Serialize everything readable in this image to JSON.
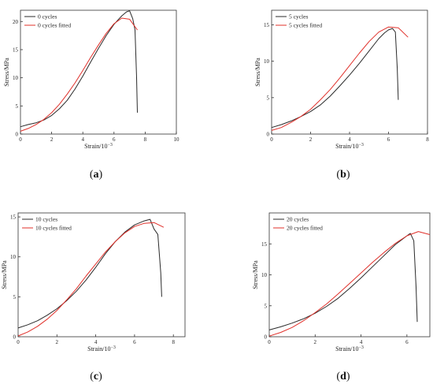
{
  "colors": {
    "measured": "#2a2a2a",
    "fitted": "#e0302a",
    "axis": "#333333"
  },
  "captions": [
    "a",
    "b",
    "c",
    "d"
  ],
  "chart_data": [
    {
      "type": "line",
      "xlabel": "Strain/10",
      "xlabel_exp": "−3",
      "ylabel": "Stress/MPa",
      "xlim": [
        0,
        10
      ],
      "ylim": [
        0,
        22
      ],
      "xticks": [
        0,
        2,
        4,
        6,
        8,
        10
      ],
      "yticks": [
        0,
        5,
        10,
        15,
        20
      ],
      "legend": "top-left",
      "series": [
        {
          "name": "0 cycles",
          "color": "#2a2a2a",
          "x": [
            0,
            0.5,
            1,
            1.5,
            2,
            2.5,
            3,
            3.5,
            4,
            4.5,
            5,
            5.5,
            6,
            6.5,
            6.8,
            7.0,
            7.2,
            7.35,
            7.45,
            7.5
          ],
          "y": [
            1.3,
            1.7,
            2.0,
            2.5,
            3.3,
            4.5,
            6.0,
            8.0,
            10.3,
            12.8,
            15.2,
            17.5,
            19.5,
            21.0,
            21.7,
            21.9,
            20.5,
            18.5,
            10.0,
            3.8
          ]
        },
        {
          "name": "0 cycles fitted",
          "color": "#e0302a",
          "x": [
            0,
            0.5,
            1,
            1.5,
            2,
            2.5,
            3,
            3.5,
            4,
            4.5,
            5,
            5.5,
            6,
            6.5,
            7,
            7.5
          ],
          "y": [
            0.5,
            1.0,
            1.7,
            2.6,
            3.8,
            5.3,
            7.1,
            9.1,
            11.3,
            13.6,
            15.8,
            17.9,
            19.6,
            20.6,
            20.4,
            18.5
          ]
        }
      ]
    },
    {
      "type": "line",
      "xlabel": "Strain/10",
      "xlabel_exp": "−3",
      "ylabel": "Stress/MPa",
      "xlim": [
        0,
        8
      ],
      "ylim": [
        0,
        17
      ],
      "xticks": [
        0,
        2,
        4,
        6,
        8
      ],
      "yticks": [
        0,
        5,
        10,
        15
      ],
      "legend": "top-left",
      "series": [
        {
          "name": "5 cycles",
          "color": "#2a2a2a",
          "x": [
            0,
            0.5,
            1,
            1.5,
            2,
            2.5,
            3,
            3.5,
            4,
            4.5,
            5,
            5.5,
            5.8,
            6.0,
            6.2,
            6.35,
            6.45,
            6.5
          ],
          "y": [
            0.9,
            1.3,
            1.8,
            2.4,
            3.1,
            4.0,
            5.2,
            6.6,
            8.1,
            9.7,
            11.4,
            13.1,
            13.9,
            14.3,
            14.5,
            14.0,
            9.0,
            4.7
          ]
        },
        {
          "name": "5 cycles fitted",
          "color": "#e0302a",
          "x": [
            0,
            0.5,
            1,
            1.5,
            2,
            2.5,
            3,
            3.5,
            4,
            4.5,
            5,
            5.5,
            6,
            6.5,
            7
          ],
          "y": [
            0.5,
            0.9,
            1.6,
            2.4,
            3.4,
            4.7,
            6.1,
            7.7,
            9.4,
            11.1,
            12.7,
            14.0,
            14.7,
            14.6,
            13.3
          ]
        }
      ]
    },
    {
      "type": "line",
      "xlabel": "Strain/10",
      "xlabel_exp": "−3",
      "ylabel": "Stress/MPa",
      "xlim": [
        0,
        8.6
      ],
      "ylim": [
        0,
        15.5
      ],
      "xticks": [
        0,
        2,
        4,
        6,
        8
      ],
      "yticks": [
        0,
        5,
        10,
        15
      ],
      "legend": "top-left",
      "series": [
        {
          "name": "10 cycles",
          "color": "#2a2a2a",
          "x": [
            0,
            0.5,
            1,
            1.5,
            2,
            2.5,
            3,
            3.5,
            4,
            4.5,
            5,
            5.5,
            6,
            6.5,
            6.8,
            7.0,
            7.2,
            7.35,
            7.4
          ],
          "y": [
            1.1,
            1.5,
            2.0,
            2.7,
            3.5,
            4.5,
            5.7,
            7.1,
            8.7,
            10.4,
            11.9,
            13.1,
            14.0,
            14.5,
            14.7,
            13.5,
            12.8,
            8.0,
            5.0
          ]
        },
        {
          "name": "10 cycles fitted",
          "color": "#e0302a",
          "x": [
            0,
            0.5,
            1,
            1.5,
            2,
            2.5,
            3,
            3.5,
            4,
            4.5,
            5,
            5.5,
            6,
            6.5,
            7,
            7.5
          ],
          "y": [
            0.1,
            0.6,
            1.3,
            2.2,
            3.3,
            4.6,
            6.0,
            7.6,
            9.1,
            10.6,
            11.9,
            13.0,
            13.8,
            14.2,
            14.3,
            13.7
          ]
        }
      ]
    },
    {
      "type": "line",
      "xlabel": "Strain/10",
      "xlabel_exp": "−3",
      "ylabel": "Stress/MPa",
      "xlim": [
        0,
        7
      ],
      "ylim": [
        0,
        20
      ],
      "xticks": [
        0,
        2,
        4,
        6
      ],
      "yticks": [
        0,
        5,
        10,
        15
      ],
      "legend": "top-left",
      "series": [
        {
          "name": "20 cycles",
          "color": "#2a2a2a",
          "x": [
            0,
            0.5,
            1,
            1.5,
            2,
            2.5,
            3,
            3.5,
            4,
            4.5,
            5,
            5.5,
            6,
            6.15,
            6.3,
            6.4,
            6.45
          ],
          "y": [
            1.1,
            1.6,
            2.2,
            2.9,
            3.8,
            4.9,
            6.2,
            7.8,
            9.5,
            11.3,
            13.1,
            14.9,
            16.3,
            16.7,
            15.5,
            8.0,
            2.4
          ]
        },
        {
          "name": "20 cycles fitted",
          "color": "#e0302a",
          "x": [
            0,
            0.5,
            1,
            1.5,
            2,
            2.5,
            3,
            3.5,
            4,
            4.5,
            5,
            5.5,
            6,
            6.5,
            7
          ],
          "y": [
            0.1,
            0.7,
            1.5,
            2.6,
            3.9,
            5.3,
            6.9,
            8.6,
            10.3,
            12.0,
            13.6,
            15.1,
            16.3,
            17.0,
            16.5
          ]
        }
      ]
    }
  ]
}
